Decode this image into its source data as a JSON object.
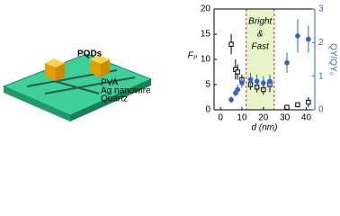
{
  "schematic": {
    "labels": [
      "PQDs",
      "PVA",
      "Ag nanowire",
      "Quartz"
    ]
  },
  "chart_data": {
    "type": "scatter",
    "xlabel": "d (nm)",
    "ylabel": "Fₚ",
    "y2label": "QY/QY₀",
    "annotations": [
      "Bright",
      "&",
      "Fast"
    ],
    "region": [
      12,
      25
    ],
    "region_color": "#e8f5c8",
    "region_line_color": "#e03030",
    "x": [
      5,
      7,
      8,
      10,
      14,
      17,
      20,
      23,
      31,
      36,
      41
    ],
    "xlim": [
      -3,
      44
    ],
    "xticks": [
      0,
      10,
      20,
      30,
      40
    ],
    "ylim": [
      0,
      20
    ],
    "yticks": [
      0,
      5,
      10,
      15,
      20
    ],
    "y2lim": [
      0,
      3
    ],
    "y2ticks": [
      0,
      1,
      2,
      3
    ],
    "y2color": "#3a5fcd",
    "series": [
      {
        "color": "#000000",
        "marker": "open-square",
        "values": [
          13,
          8,
          7.5,
          6,
          5,
          4.5,
          4,
          5,
          0.5,
          1,
          1.5
        ],
        "errors": [
          2,
          2,
          1.5,
          1,
          1,
          1,
          1,
          1.5,
          0.5,
          0.5,
          1
        ]
      },
      {
        "color": "#3a5fcd",
        "marker": "dot",
        "axis": "y2",
        "values": [
          0.3,
          0.5,
          0.6,
          0.8,
          0.9,
          0.85,
          0.8,
          0.85,
          1.4,
          2.2,
          2.1
        ],
        "errors": [
          0.1,
          0.1,
          0.15,
          0.15,
          0.2,
          0.2,
          0.2,
          0.2,
          0.3,
          0.5,
          0.4
        ]
      }
    ]
  }
}
